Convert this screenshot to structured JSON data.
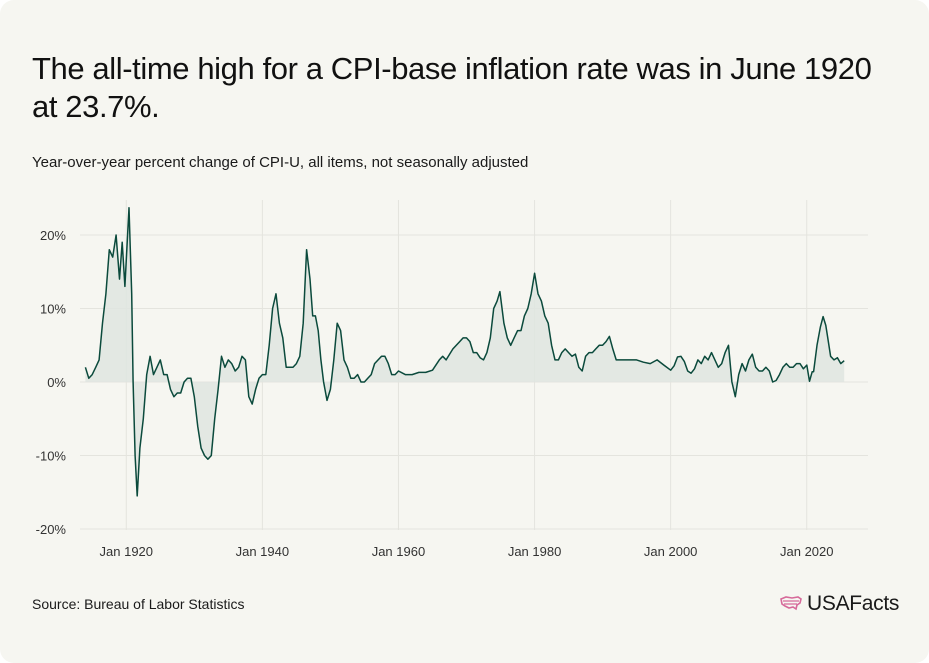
{
  "title": "The all-time high for a CPI-base inflation rate was in June 1920 at 23.7%.",
  "subtitle": "Year-over-year percent change of CPI-U, all items, not seasonally adjusted",
  "source": "Source: Bureau of Labor Statistics",
  "brand": "USAFacts",
  "colors": {
    "line": "#0b4a3c",
    "fill": "#dfe5e0",
    "grid": "#e4e4de",
    "background": "#f6f6f1",
    "logo": "#d66a9a"
  },
  "chart_data": {
    "type": "area",
    "title": "",
    "xlabel": "",
    "ylabel": "",
    "x_ticks": [
      {
        "year": 1920,
        "label": "Jan 1920"
      },
      {
        "year": 1940,
        "label": "Jan 1940"
      },
      {
        "year": 1960,
        "label": "Jan 1960"
      },
      {
        "year": 1980,
        "label": "Jan 1980"
      },
      {
        "year": 2000,
        "label": "Jan 2000"
      },
      {
        "year": 2020,
        "label": "Jan 2020"
      }
    ],
    "y_ticks": [
      {
        "value": 20,
        "label": "20%"
      },
      {
        "value": 10,
        "label": "10%"
      },
      {
        "value": 0,
        "label": "0%"
      },
      {
        "value": -10,
        "label": "-10%"
      },
      {
        "value": -20,
        "label": "-20%"
      }
    ],
    "xlim": [
      1913.2,
      2029
    ],
    "ylim": [
      -20,
      25
    ],
    "grid": true,
    "x": [
      1914.0,
      1914.5,
      1915.0,
      1915.5,
      1916.0,
      1916.5,
      1917.0,
      1917.5,
      1918.0,
      1918.5,
      1919.0,
      1919.4,
      1919.8,
      1920.4,
      1920.8,
      1921.0,
      1921.3,
      1921.6,
      1922.0,
      1922.5,
      1923.0,
      1923.5,
      1924.0,
      1924.5,
      1925.0,
      1925.5,
      1926.0,
      1926.5,
      1927.0,
      1927.5,
      1928.0,
      1928.5,
      1929.0,
      1929.5,
      1930.0,
      1930.5,
      1931.0,
      1931.5,
      1932.0,
      1932.5,
      1933.0,
      1933.5,
      1934.0,
      1934.5,
      1935.0,
      1935.5,
      1936.0,
      1936.5,
      1937.0,
      1937.5,
      1938.0,
      1938.5,
      1939.0,
      1939.5,
      1940.0,
      1940.5,
      1941.0,
      1941.5,
      1942.0,
      1942.5,
      1943.0,
      1943.5,
      1944.0,
      1944.5,
      1945.0,
      1945.5,
      1946.0,
      1946.5,
      1947.0,
      1947.4,
      1947.8,
      1948.2,
      1948.6,
      1949.0,
      1949.5,
      1950.0,
      1950.5,
      1951.0,
      1951.5,
      1952.0,
      1952.5,
      1953.0,
      1953.5,
      1954.0,
      1954.5,
      1955.0,
      1955.5,
      1956.0,
      1956.5,
      1957.0,
      1957.5,
      1958.0,
      1958.5,
      1959.0,
      1959.5,
      1960.0,
      1961.0,
      1962.0,
      1963.0,
      1964.0,
      1965.0,
      1966.0,
      1966.5,
      1967.0,
      1968.0,
      1969.0,
      1969.5,
      1970.0,
      1970.5,
      1971.0,
      1971.5,
      1972.0,
      1972.5,
      1973.0,
      1973.5,
      1974.0,
      1974.5,
      1974.9,
      1975.5,
      1976.0,
      1976.5,
      1977.0,
      1977.5,
      1978.0,
      1978.5,
      1979.0,
      1979.5,
      1980.0,
      1980.5,
      1981.0,
      1981.5,
      1982.0,
      1982.5,
      1983.0,
      1983.5,
      1984.0,
      1984.5,
      1985.0,
      1985.5,
      1986.0,
      1986.5,
      1987.0,
      1987.5,
      1988.0,
      1988.5,
      1989.0,
      1989.5,
      1990.0,
      1990.5,
      1991.0,
      1991.5,
      1992.0,
      1992.5,
      1993.0,
      1994.0,
      1995.0,
      1996.0,
      1997.0,
      1998.0,
      1999.0,
      2000.0,
      2000.5,
      2001.0,
      2001.5,
      2002.0,
      2002.5,
      2003.0,
      2003.5,
      2004.0,
      2004.5,
      2005.0,
      2005.5,
      2006.0,
      2006.5,
      2007.0,
      2007.5,
      2008.0,
      2008.5,
      2009.0,
      2009.5,
      2010.0,
      2010.5,
      2011.0,
      2011.5,
      2012.0,
      2012.5,
      2013.0,
      2013.5,
      2014.0,
      2014.5,
      2015.0,
      2015.5,
      2016.0,
      2016.5,
      2017.0,
      2017.5,
      2018.0,
      2018.5,
      2019.0,
      2019.5,
      2020.0,
      2020.4,
      2020.8,
      2021.0,
      2021.5,
      2022.0,
      2022.4,
      2022.8,
      2023.0,
      2023.5,
      2024.0,
      2024.5,
      2025.0,
      2025.5
    ],
    "values": [
      2.0,
      0.5,
      1.0,
      2.0,
      3.0,
      8.0,
      12.0,
      18.0,
      17.0,
      20.0,
      14.0,
      19.0,
      13.0,
      23.7,
      12.0,
      0.0,
      -10.0,
      -15.5,
      -9.0,
      -5.0,
      1.0,
      3.5,
      1.0,
      2.0,
      3.0,
      1.0,
      1.0,
      -1.0,
      -2.0,
      -1.5,
      -1.5,
      0.0,
      0.5,
      0.5,
      -2.0,
      -6.0,
      -9.0,
      -10.0,
      -10.5,
      -10.0,
      -5.0,
      -1.0,
      3.5,
      2.0,
      3.0,
      2.5,
      1.5,
      2.0,
      3.5,
      3.0,
      -2.0,
      -3.0,
      -1.0,
      0.5,
      1.0,
      1.0,
      5.0,
      10.0,
      12.0,
      8.0,
      6.0,
      2.0,
      2.0,
      2.0,
      2.5,
      3.5,
      8.0,
      18.0,
      14.0,
      9.0,
      9.0,
      7.0,
      3.0,
      0.0,
      -2.5,
      -1.0,
      3.0,
      8.0,
      7.0,
      3.0,
      2.0,
      0.5,
      0.5,
      1.0,
      0.0,
      0.0,
      0.5,
      1.0,
      2.5,
      3.0,
      3.5,
      3.5,
      2.5,
      1.0,
      1.0,
      1.5,
      1.0,
      1.0,
      1.3,
      1.3,
      1.6,
      3.0,
      3.5,
      3.0,
      4.5,
      5.5,
      6.0,
      6.0,
      5.5,
      4.0,
      4.0,
      3.3,
      3.0,
      4.0,
      6.0,
      10.0,
      11.0,
      12.3,
      8.0,
      6.0,
      5.0,
      6.0,
      7.0,
      7.0,
      9.0,
      10.0,
      12.0,
      14.8,
      12.0,
      11.0,
      9.0,
      8.0,
      5.0,
      3.0,
      3.0,
      4.0,
      4.5,
      4.0,
      3.5,
      3.8,
      2.0,
      1.5,
      3.5,
      4.0,
      4.0,
      4.5,
      5.0,
      5.0,
      5.5,
      6.2,
      4.5,
      3.0,
      3.0,
      3.0,
      3.0,
      3.0,
      2.7,
      2.5,
      3.0,
      2.3,
      1.6,
      2.2,
      3.4,
      3.5,
      2.8,
      1.5,
      1.2,
      1.8,
      3.0,
      2.5,
      3.5,
      3.0,
      4.0,
      3.0,
      2.0,
      2.5,
      4.0,
      5.0,
      0.0,
      -2.0,
      1.0,
      2.5,
      1.5,
      3.0,
      3.8,
      2.0,
      1.5,
      1.5,
      2.0,
      1.5,
      0.0,
      0.2,
      1.0,
      2.0,
      2.5,
      2.0,
      2.0,
      2.5,
      2.5,
      1.8,
      2.3,
      0.1,
      1.4,
      1.4,
      5.0,
      7.5,
      8.9,
      7.7,
      6.5,
      3.5,
      3.0,
      3.3,
      2.5,
      2.9
    ]
  }
}
